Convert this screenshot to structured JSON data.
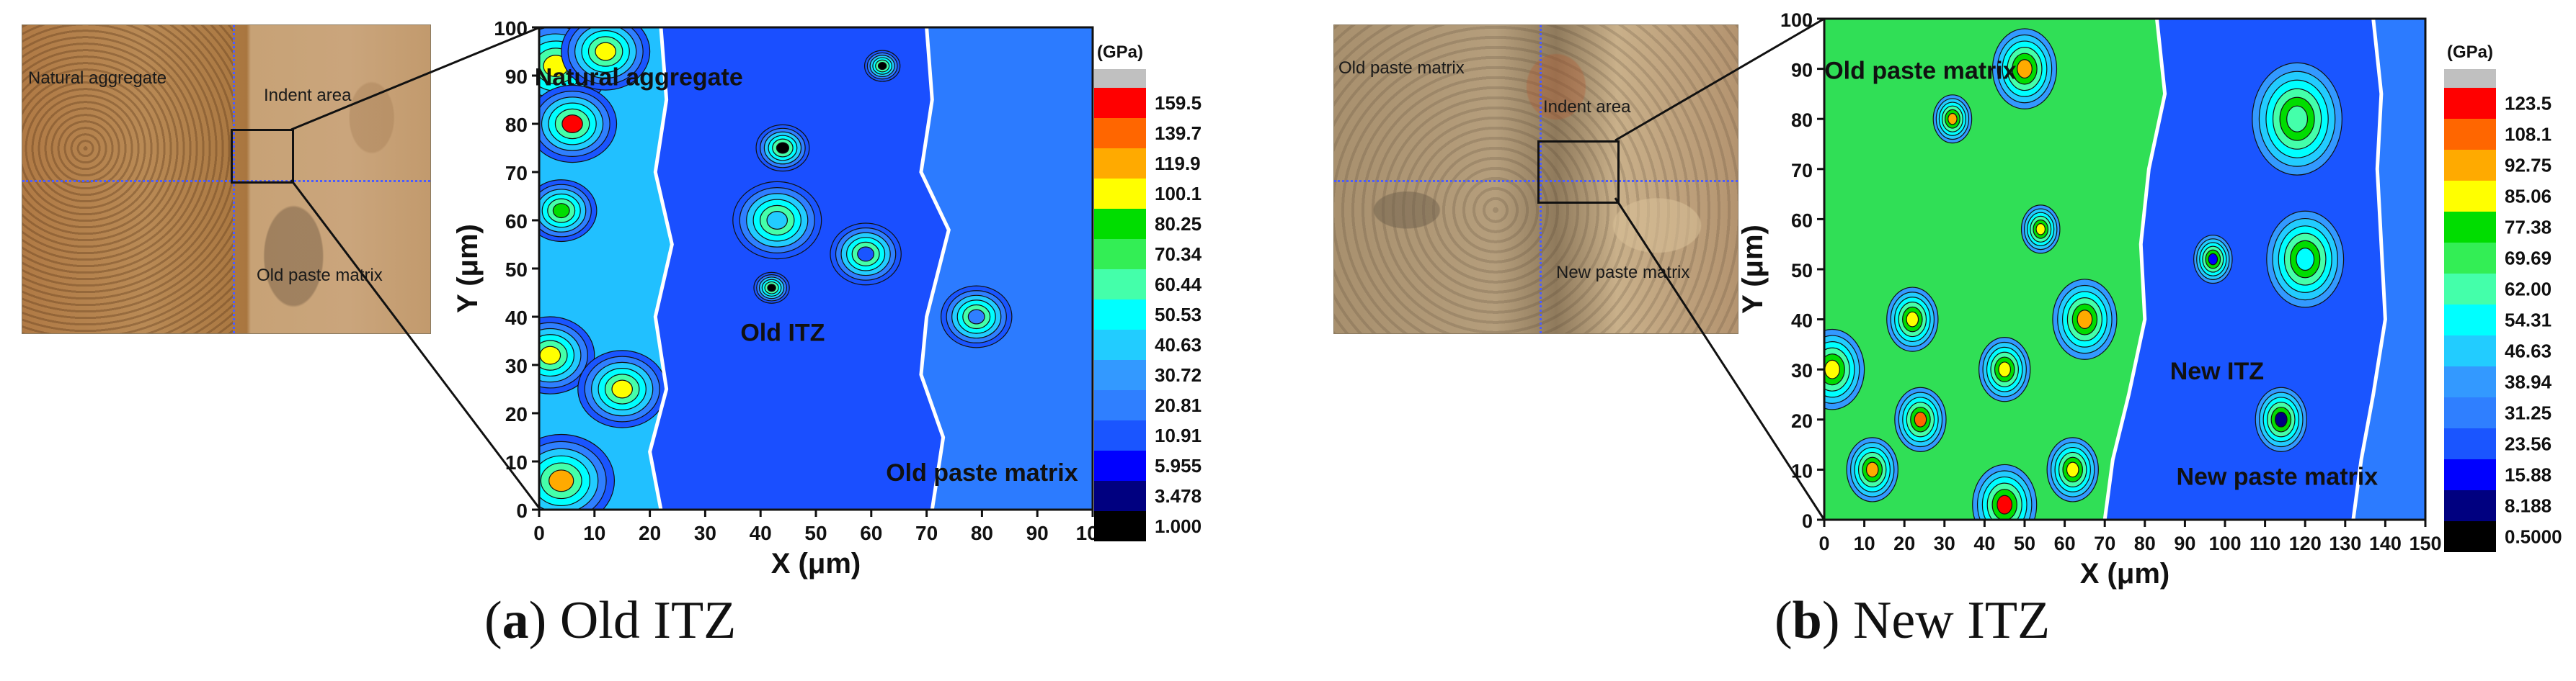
{
  "panel_a": {
    "caption_letter": "a",
    "caption_text": "Old ITZ",
    "photo_labels": {
      "top_left": "Natural aggregate",
      "indent": "Indent area",
      "bottom_right": "Old paste matrix"
    }
  },
  "panel_b": {
    "caption_letter": "b",
    "caption_text": "New ITZ",
    "photo_labels": {
      "top_left": "Old paste matrix",
      "indent": "Indent area",
      "bottom_right": "New paste matrix"
    }
  },
  "colors": {
    "black": "#000000",
    "blue_dark": "#0000ff",
    "blue": "#1a55ff",
    "blue_light": "#2f7fff",
    "cyan_blue": "#3cb4ff",
    "cyan": "#00ffff",
    "teal": "#44ddbb",
    "green_light": "#33ee44",
    "green": "#00cc00",
    "yellow": "#ffff00",
    "orange": "#ff9900",
    "red": "#ff0000",
    "grey": "#c0c0c0"
  },
  "chart_data": [
    {
      "type": "heatmap",
      "title": "",
      "xlabel": "X (μm)",
      "ylabel": "Y (μm)",
      "xlim": [
        0,
        100
      ],
      "ylim": [
        0,
        100
      ],
      "xticks": [
        0,
        10,
        20,
        30,
        40,
        50,
        60,
        70,
        80,
        90,
        100
      ],
      "yticks": [
        0,
        10,
        20,
        30,
        40,
        50,
        60,
        70,
        80,
        90,
        100
      ],
      "colorbar_unit": "(GPa)",
      "colorbar_levels": [
        "159.5",
        "139.7",
        "119.9",
        "100.1",
        "80.25",
        "70.34",
        "60.44",
        "50.53",
        "40.63",
        "30.72",
        "20.81",
        "10.91",
        "5.955",
        "3.478",
        "1.000"
      ],
      "colorbar_colors": [
        "#ff0000",
        "#ff6600",
        "#ffaa00",
        "#ffff00",
        "#00dd00",
        "#33ee55",
        "#44ffaa",
        "#00ffff",
        "#22ccff",
        "#3399ff",
        "#2f7fff",
        "#1a55ff",
        "#0000ff",
        "#000080",
        "#000000"
      ],
      "annotations": [
        {
          "text": "Natural aggregate",
          "x": 18,
          "y": 88
        },
        {
          "text": "Old ITZ",
          "x": 44,
          "y": 35
        },
        {
          "text": "Old paste matrix",
          "x": 80,
          "y": 6
        }
      ],
      "boundaries": [
        {
          "name": "aggregate-itz",
          "points": [
            [
              22,
              100
            ],
            [
              23,
              85
            ],
            [
              21,
              70
            ],
            [
              24,
              55
            ],
            [
              21,
              40
            ],
            [
              23,
              25
            ],
            [
              20,
              12
            ],
            [
              22,
              0
            ]
          ]
        },
        {
          "name": "itz-paste",
          "points": [
            [
              70,
              100
            ],
            [
              71,
              85
            ],
            [
              69,
              70
            ],
            [
              74,
              58
            ],
            [
              70,
              40
            ],
            [
              69,
              28
            ],
            [
              73,
              15
            ],
            [
              71,
              0
            ]
          ]
        }
      ],
      "features": [
        {
          "x": 3,
          "y": 92,
          "r": 6,
          "level": "100.1"
        },
        {
          "x": 12,
          "y": 95,
          "r": 5,
          "level": "100.1"
        },
        {
          "x": 6,
          "y": 80,
          "r": 5,
          "level": "159.5"
        },
        {
          "x": 4,
          "y": 62,
          "r": 4,
          "level": "80.25"
        },
        {
          "x": 2,
          "y": 32,
          "r": 5,
          "level": "100.1"
        },
        {
          "x": 15,
          "y": 25,
          "r": 5,
          "level": "100.1"
        },
        {
          "x": 4,
          "y": 6,
          "r": 6,
          "level": "119.9"
        },
        {
          "x": 43,
          "y": 60,
          "r": 5,
          "level": "40.63"
        },
        {
          "x": 44,
          "y": 75,
          "r": 3,
          "level": "1.000"
        },
        {
          "x": 42,
          "y": 46,
          "r": 2,
          "level": "1.000"
        },
        {
          "x": 62,
          "y": 92,
          "r": 2,
          "level": "1.000"
        },
        {
          "x": 79,
          "y": 40,
          "r": 4,
          "level": "20.81"
        },
        {
          "x": 59,
          "y": 53,
          "r": 4,
          "level": "10.91"
        }
      ]
    },
    {
      "type": "heatmap",
      "title": "",
      "xlabel": "X (μm)",
      "ylabel": "Y (μm)",
      "xlim": [
        0,
        150
      ],
      "ylim": [
        0,
        100
      ],
      "xticks": [
        0,
        10,
        20,
        30,
        40,
        50,
        60,
        70,
        80,
        90,
        100,
        110,
        120,
        130,
        140,
        150
      ],
      "yticks": [
        0,
        10,
        20,
        30,
        40,
        50,
        60,
        70,
        80,
        90,
        100
      ],
      "colorbar_unit": "(GPa)",
      "colorbar_levels": [
        "123.5",
        "108.1",
        "92.75",
        "85.06",
        "77.38",
        "69.69",
        "62.00",
        "54.31",
        "46.63",
        "38.94",
        "31.25",
        "23.56",
        "15.88",
        "8.188",
        "0.5000"
      ],
      "colorbar_colors": [
        "#ff0000",
        "#ff6600",
        "#ffaa00",
        "#ffff00",
        "#00dd00",
        "#33ee55",
        "#44ffaa",
        "#00ffff",
        "#22ccff",
        "#3399ff",
        "#2f7fff",
        "#1a55ff",
        "#0000ff",
        "#000080",
        "#000000"
      ],
      "annotations": [
        {
          "text": "Old paste matrix",
          "x": 24,
          "y": 88
        },
        {
          "text": "New ITZ",
          "x": 98,
          "y": 28
        },
        {
          "text": "New paste matrix",
          "x": 113,
          "y": 7
        }
      ],
      "boundaries": [
        {
          "name": "oldpaste-itz",
          "points": [
            [
              83,
              100
            ],
            [
              85,
              85
            ],
            [
              81,
              70
            ],
            [
              79,
              55
            ],
            [
              80,
              40
            ],
            [
              76,
              25
            ],
            [
              72,
              12
            ],
            [
              70,
              0
            ]
          ]
        },
        {
          "name": "itz-newpaste",
          "points": [
            [
              137,
              100
            ],
            [
              139,
              85
            ],
            [
              138,
              70
            ],
            [
              139,
              55
            ],
            [
              140,
              40
            ],
            [
              137,
              25
            ],
            [
              134,
              12
            ],
            [
              132,
              0
            ]
          ]
        }
      ],
      "features": [
        {
          "x": 50,
          "y": 90,
          "r": 5,
          "level": "92.75"
        },
        {
          "x": 32,
          "y": 80,
          "r": 3,
          "level": "92.75"
        },
        {
          "x": 65,
          "y": 40,
          "r": 5,
          "level": "92.75"
        },
        {
          "x": 24,
          "y": 20,
          "r": 4,
          "level": "108.1"
        },
        {
          "x": 45,
          "y": 3,
          "r": 5,
          "level": "123.5"
        },
        {
          "x": 45,
          "y": 30,
          "r": 4,
          "level": "85.06"
        },
        {
          "x": 54,
          "y": 58,
          "r": 3,
          "level": "85.06"
        },
        {
          "x": 22,
          "y": 40,
          "r": 4,
          "level": "85.06"
        },
        {
          "x": 2,
          "y": 30,
          "r": 5,
          "level": "85.06"
        },
        {
          "x": 12,
          "y": 10,
          "r": 4,
          "level": "92.75"
        },
        {
          "x": 62,
          "y": 10,
          "r": 4,
          "level": "85.06"
        },
        {
          "x": 118,
          "y": 80,
          "r": 7,
          "level": "62.00"
        },
        {
          "x": 120,
          "y": 52,
          "r": 6,
          "level": "54.31"
        },
        {
          "x": 114,
          "y": 20,
          "r": 4,
          "level": "8.188"
        },
        {
          "x": 97,
          "y": 52,
          "r": 3,
          "level": "15.88"
        }
      ]
    }
  ]
}
